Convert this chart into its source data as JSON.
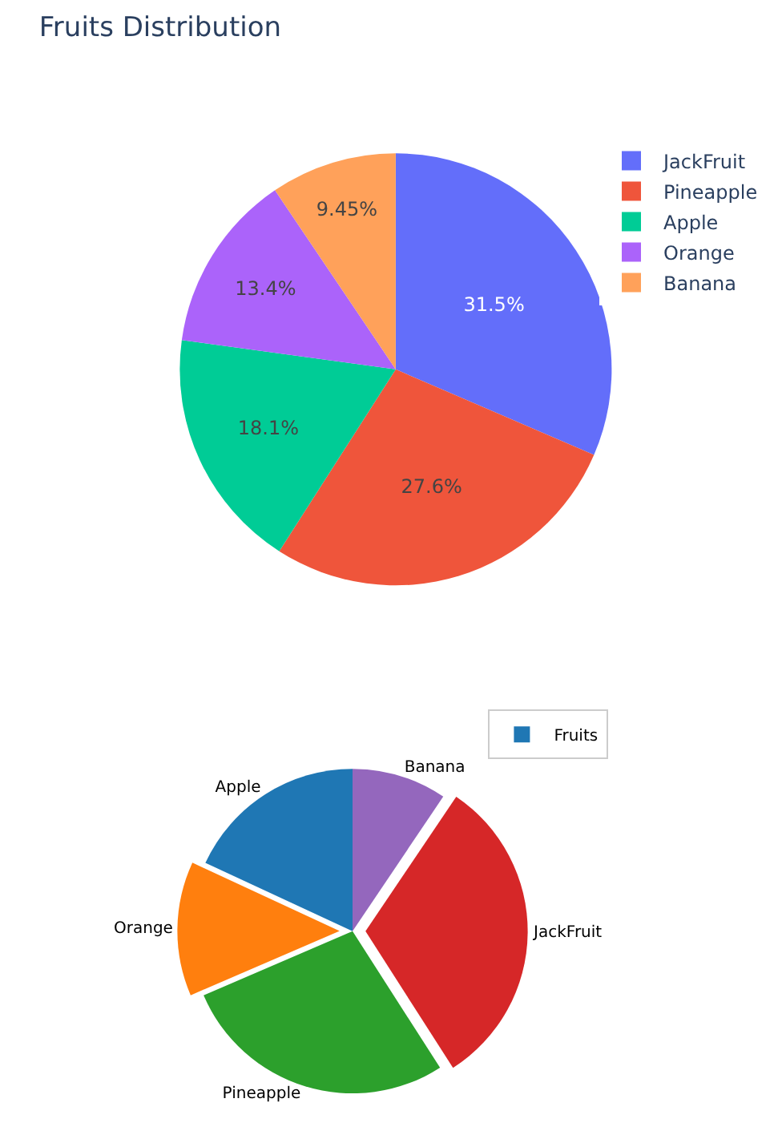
{
  "chart_data": [
    {
      "type": "pie",
      "title": "Fruits Distribution",
      "categories": [
        "JackFruit",
        "Pineapple",
        "Apple",
        "Orange",
        "Banana"
      ],
      "values": [
        31.5,
        27.6,
        18.1,
        13.4,
        9.45
      ],
      "colors": [
        "#636efa",
        "#ef553b",
        "#00cc96",
        "#ab63fa",
        "#ffa15a"
      ],
      "value_labels": [
        "31.5%",
        "27.6%",
        "18.1%",
        "13.4%",
        "9.45%"
      ],
      "legend": "top right"
    },
    {
      "type": "pie",
      "categories": [
        "Banana",
        "JackFruit",
        "Pineapple",
        "Orange",
        "Apple"
      ],
      "colors": [
        "#9467bd",
        "#d62728",
        "#2ca02c",
        "#ff7f0e",
        "#1f77b4"
      ],
      "legend": "top right",
      "series": [
        {
          "name": "Fruits",
          "color": "#1f77b4",
          "values": [
            9.45,
            31.5,
            27.6,
            13.4,
            18.1
          ]
        }
      ]
    }
  ]
}
